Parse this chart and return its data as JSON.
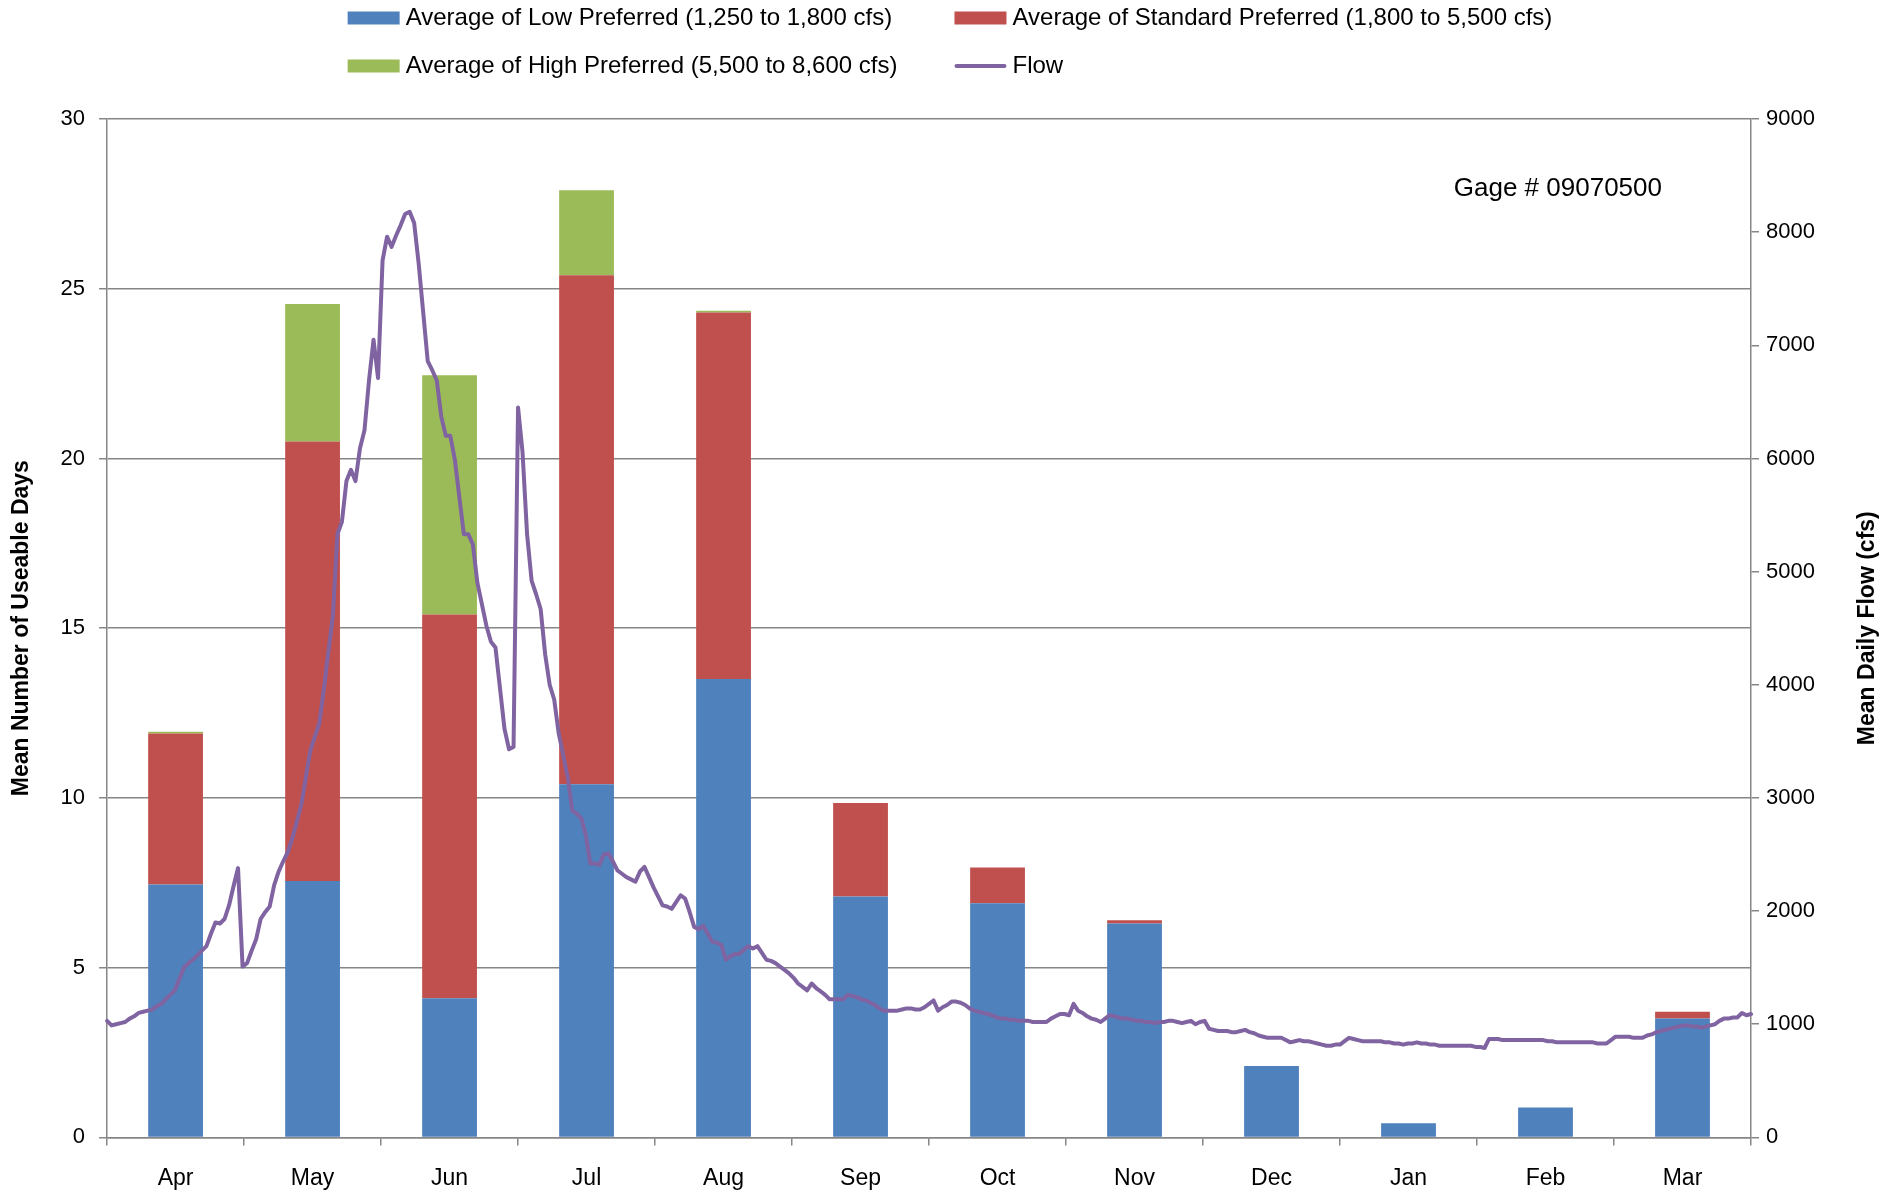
{
  "chart_data": [
    {
      "type": "bar",
      "stacked": true,
      "ylabel": "Mean Number of Useable Days",
      "categories": [
        "Apr",
        "May",
        "Jun",
        "Jul",
        "Aug",
        "Sep",
        "Oct",
        "Nov",
        "Dec",
        "Jan",
        "Feb",
        "Mar"
      ],
      "series": [
        {
          "name": "Average of Low Preferred (1,250 to 1,800 cfs)",
          "color": "#4f81bd",
          "values": [
            7.45,
            7.55,
            4.1,
            10.4,
            13.5,
            7.1,
            6.9,
            6.3,
            2.1,
            0.42,
            0.88,
            3.5
          ]
        },
        {
          "name": "Average of Standard Preferred (1,800 to 5,500 cfs)",
          "color": "#c0504d",
          "values": [
            4.45,
            12.95,
            11.3,
            15.0,
            10.8,
            2.75,
            1.05,
            0.1,
            null,
            null,
            null,
            0.2
          ]
        },
        {
          "name": "Average of High Preferred (5,500 to 8,600 cfs)",
          "color": "#9bbb59",
          "values": [
            0.05,
            4.05,
            7.05,
            2.5,
            0.05,
            null,
            null,
            null,
            null,
            null,
            null,
            null
          ]
        }
      ],
      "ylim": [
        0,
        30
      ],
      "yticks": [
        0,
        5,
        10,
        15,
        20,
        25,
        30
      ],
      "grid": "y",
      "legend": "top",
      "annotations": [
        "Gage # 09070500"
      ]
    },
    {
      "type": "line",
      "ylabel": "Mean Daily Flow (cfs)",
      "tick_labels": "y",
      "legend": "top",
      "marker": "none",
      "line_style": "solid",
      "ylim": [
        0,
        9000
      ],
      "yticks": [
        0,
        1000,
        2000,
        3000,
        4000,
        5000,
        6000,
        7000,
        8000,
        9000
      ],
      "categories": [
        null,
        null,
        null,
        null,
        null,
        null,
        null,
        null,
        null,
        null,
        null,
        null,
        null,
        null,
        null,
        null,
        null,
        null,
        null,
        null,
        null,
        null,
        null,
        null,
        null,
        null,
        null,
        null,
        null,
        null,
        null,
        null,
        null,
        null,
        null,
        null,
        null,
        null,
        null,
        null,
        null,
        null,
        null,
        null,
        null,
        null,
        null,
        null,
        null,
        null,
        null,
        null,
        null,
        null,
        null,
        null,
        null,
        null,
        null,
        null,
        null,
        null,
        null,
        null,
        null,
        null,
        null,
        null,
        null,
        null,
        null,
        null,
        null,
        null,
        null,
        null,
        null,
        null,
        null,
        null,
        null,
        null,
        null,
        null,
        null,
        null,
        null,
        null,
        null,
        null,
        null,
        null,
        null,
        null,
        null,
        null,
        null,
        null,
        null,
        null,
        null,
        null,
        null,
        null,
        null,
        null,
        null,
        null,
        null,
        null,
        null,
        null,
        null,
        null,
        null,
        null,
        null,
        null,
        null,
        null,
        null,
        null,
        null,
        null,
        null,
        null,
        null,
        null,
        null,
        null,
        null,
        null,
        null,
        null,
        null,
        null,
        null,
        null,
        null,
        null,
        null,
        null,
        null,
        null,
        null,
        null,
        null,
        null,
        null,
        null,
        null,
        null,
        null,
        null,
        null,
        null,
        null,
        null,
        null,
        null,
        null,
        null,
        null,
        null,
        null,
        null,
        null,
        null,
        null,
        null,
        null,
        null,
        null,
        null,
        null,
        null,
        null,
        null,
        null,
        null,
        null,
        null,
        null,
        null,
        null,
        null,
        null,
        null,
        null,
        null,
        null,
        null,
        null,
        null,
        null,
        null,
        null,
        null,
        null,
        null,
        null,
        null,
        null,
        null,
        null,
        null,
        null,
        null,
        null,
        null,
        null,
        null,
        null,
        null,
        null,
        null,
        null,
        null,
        null,
        null,
        null,
        null,
        null,
        null,
        null,
        null,
        null,
        null,
        null,
        null,
        null,
        null,
        null,
        null,
        null,
        null,
        null,
        null,
        null,
        null,
        null,
        null,
        null,
        null,
        null,
        null,
        null,
        null,
        null,
        null,
        null,
        null,
        null,
        null,
        null,
        null,
        null,
        null,
        null,
        null,
        null,
        null,
        null,
        null,
        null,
        null,
        null,
        null,
        null,
        null,
        null,
        null,
        null,
        null,
        null,
        null,
        null,
        null,
        null,
        null,
        null,
        null,
        null,
        null,
        null,
        null,
        null,
        null,
        null,
        null,
        null,
        null,
        null,
        null,
        null,
        null,
        null,
        null,
        null,
        null,
        null,
        null,
        null,
        null,
        null,
        null,
        null,
        null,
        null,
        null,
        null,
        null,
        null,
        null,
        null,
        null,
        null,
        null,
        null,
        null,
        null,
        null,
        null,
        null,
        null,
        null,
        null,
        null,
        null,
        null,
        null,
        null,
        null,
        null,
        null,
        null,
        null,
        null,
        null,
        null,
        null,
        null,
        null,
        null,
        null,
        null,
        null,
        null,
        null,
        null,
        null,
        null,
        null,
        null,
        null,
        null,
        null,
        null,
        null,
        null,
        null,
        null,
        null,
        null,
        null
      ],
      "series": [
        {
          "name": "Flow",
          "color": "#8064a2",
          "values": [
            1030,
            990,
            1000,
            1010,
            1020,
            1050,
            1070,
            1100,
            1110,
            1120,
            1130,
            1160,
            1180,
            1220,
            1260,
            1300,
            1400,
            1500,
            1540,
            1570,
            1610,
            1650,
            1690,
            1800,
            1900,
            1890,
            1930,
            2050,
            2220,
            2380,
            1510,
            1540,
            1650,
            1750,
            1930,
            1990,
            2040,
            2230,
            2350,
            2440,
            2520,
            2640,
            2790,
            2940,
            3180,
            3420,
            3540,
            3660,
            3960,
            4290,
            4610,
            5330,
            5440,
            5800,
            5900,
            5800,
            6090,
            6250,
            6690,
            7050,
            6710,
            7750,
            7960,
            7870,
            7970,
            8060,
            8160,
            8180,
            8080,
            7720,
            7290,
            6860,
            6780,
            6690,
            6370,
            6200,
            6200,
            5990,
            5660,
            5330,
            5330,
            5240,
            4900,
            4710,
            4520,
            4380,
            4330,
            3970,
            3610,
            3430,
            3450,
            6450,
            6050,
            5330,
            4920,
            4800,
            4670,
            4270,
            4000,
            3870,
            3570,
            3380,
            3180,
            2890,
            2860,
            2820,
            2670,
            2420,
            2420,
            2410,
            2500,
            2510,
            2440,
            2360,
            2330,
            2300,
            2280,
            2260,
            2350,
            2390,
            2300,
            2210,
            2130,
            2050,
            2040,
            2020,
            2080,
            2140,
            2110,
            1990,
            1860,
            1840,
            1870,
            1800,
            1730,
            1720,
            1700,
            1570,
            1600,
            1620,
            1620,
            1660,
            1690,
            1670,
            1690,
            1630,
            1570,
            1560,
            1540,
            1510,
            1480,
            1450,
            1410,
            1360,
            1330,
            1300,
            1360,
            1320,
            1290,
            1260,
            1220,
            1220,
            1220,
            1220,
            1260,
            1250,
            1240,
            1220,
            1210,
            1190,
            1170,
            1140,
            1120,
            1120,
            1120,
            1120,
            1130,
            1140,
            1140,
            1130,
            1130,
            1150,
            1180,
            1210,
            1120,
            1150,
            1170,
            1200,
            1200,
            1190,
            1170,
            1140,
            1120,
            1110,
            1100,
            1090,
            1080,
            1060,
            1050,
            1050,
            1040,
            1040,
            1030,
            1030,
            1030,
            1020,
            1020,
            1020,
            1020,
            1050,
            1070,
            1090,
            1090,
            1080,
            1180,
            1120,
            1100,
            1070,
            1050,
            1040,
            1020,
            1050,
            1080,
            1070,
            1060,
            1050,
            1050,
            1040,
            1030,
            1030,
            1020,
            1020,
            1010,
            1020,
            1020,
            1030,
            1030,
            1020,
            1010,
            1020,
            1030,
            1000,
            1020,
            1030,
            960,
            950,
            940,
            940,
            940,
            930,
            930,
            940,
            950,
            930,
            920,
            900,
            890,
            880,
            880,
            880,
            880,
            860,
            840,
            850,
            860,
            850,
            850,
            840,
            830,
            820,
            810,
            810,
            820,
            820,
            850,
            880,
            870,
            860,
            850,
            850,
            850,
            850,
            850,
            840,
            840,
            830,
            830,
            820,
            830,
            830,
            840,
            830,
            830,
            820,
            820,
            810,
            810,
            810,
            810,
            810,
            810,
            810,
            810,
            800,
            800,
            790,
            870,
            870,
            870,
            860,
            860,
            860,
            860,
            860,
            860,
            860,
            860,
            860,
            860,
            850,
            850,
            840,
            840,
            840,
            840,
            840,
            840,
            840,
            840,
            840,
            830,
            830,
            830,
            860,
            890,
            890,
            890,
            890,
            880,
            880,
            880,
            900,
            910,
            930,
            940,
            950,
            960,
            970,
            980,
            990,
            990,
            980,
            980,
            970,
            980,
            990,
            1000,
            1030,
            1050,
            1050,
            1060,
            1060,
            1100,
            1080,
            1090
          ]
        }
      ]
    }
  ]
}
